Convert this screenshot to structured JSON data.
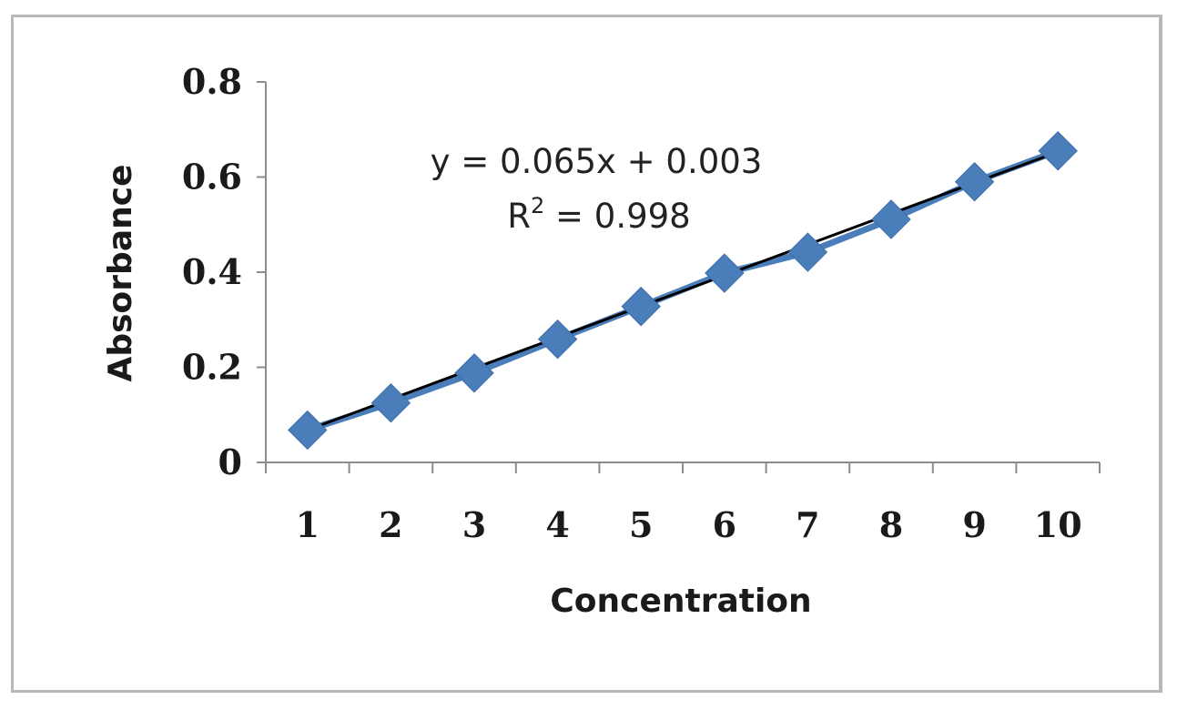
{
  "chart_data": {
    "type": "line",
    "xlabel": "Concentration",
    "ylabel": "Absorbance",
    "categories": [
      "1",
      "2",
      "3",
      "4",
      "5",
      "6",
      "7",
      "8",
      "9",
      "10"
    ],
    "series": [
      {
        "values": [
          0.068,
          0.125,
          0.188,
          0.259,
          0.328,
          0.398,
          0.442,
          0.511,
          0.59,
          0.655
        ]
      }
    ],
    "ylim": [
      0,
      0.8
    ],
    "yticks": [
      "0",
      "0.2",
      "0.4",
      "0.6",
      "0.8"
    ],
    "trendline": {
      "slope": 0.065,
      "intercept": 0.003,
      "equation": "y = 0.065x + 0.003",
      "r2_prefix": "R",
      "r2_exponent": "2",
      "r2_value": " = 0.998"
    },
    "grid": false,
    "legend": "none",
    "colors": {
      "series": "#4a7ebb",
      "trendline": "#000000",
      "axis": "#8c8c8c"
    },
    "marker": "diamond"
  }
}
